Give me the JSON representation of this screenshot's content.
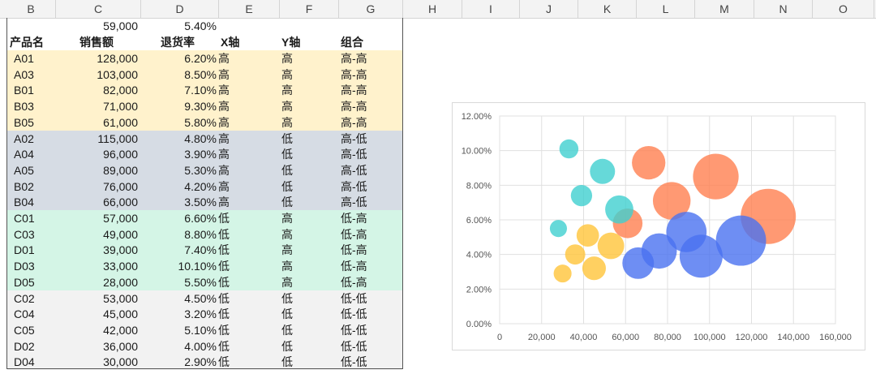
{
  "columns": [
    "B",
    "C",
    "D",
    "E",
    "F",
    "G",
    "H",
    "I",
    "J",
    "K",
    "L",
    "M",
    "N",
    "O"
  ],
  "summary": {
    "avg_sales": "59,000",
    "avg_return": "5.40%"
  },
  "header": {
    "product": "产品名",
    "sales": "销售额",
    "return_rate": "退货率",
    "x_axis": "X轴",
    "y_axis": "Y轴",
    "combo": "组合"
  },
  "rows": [
    {
      "name": "A01",
      "sales": "128,000",
      "rate": "6.20%",
      "x": "高",
      "y": "高",
      "combo": "高-高",
      "group": "hh"
    },
    {
      "name": "A03",
      "sales": "103,000",
      "rate": "8.50%",
      "x": "高",
      "y": "高",
      "combo": "高-高",
      "group": "hh"
    },
    {
      "name": "B01",
      "sales": "82,000",
      "rate": "7.10%",
      "x": "高",
      "y": "高",
      "combo": "高-高",
      "group": "hh"
    },
    {
      "name": "B03",
      "sales": "71,000",
      "rate": "9.30%",
      "x": "高",
      "y": "高",
      "combo": "高-高",
      "group": "hh"
    },
    {
      "name": "B05",
      "sales": "61,000",
      "rate": "5.80%",
      "x": "高",
      "y": "高",
      "combo": "高-高",
      "group": "hh"
    },
    {
      "name": "A02",
      "sales": "115,000",
      "rate": "4.80%",
      "x": "高",
      "y": "低",
      "combo": "高-低",
      "group": "hl"
    },
    {
      "name": "A04",
      "sales": "96,000",
      "rate": "3.90%",
      "x": "高",
      "y": "低",
      "combo": "高-低",
      "group": "hl"
    },
    {
      "name": "A05",
      "sales": "89,000",
      "rate": "5.30%",
      "x": "高",
      "y": "低",
      "combo": "高-低",
      "group": "hl"
    },
    {
      "name": "B02",
      "sales": "76,000",
      "rate": "4.20%",
      "x": "高",
      "y": "低",
      "combo": "高-低",
      "group": "hl"
    },
    {
      "name": "B04",
      "sales": "66,000",
      "rate": "3.50%",
      "x": "高",
      "y": "低",
      "combo": "高-低",
      "group": "hl"
    },
    {
      "name": "C01",
      "sales": "57,000",
      "rate": "6.60%",
      "x": "低",
      "y": "高",
      "combo": "低-高",
      "group": "lh"
    },
    {
      "name": "C03",
      "sales": "49,000",
      "rate": "8.80%",
      "x": "低",
      "y": "高",
      "combo": "低-高",
      "group": "lh"
    },
    {
      "name": "D01",
      "sales": "39,000",
      "rate": "7.40%",
      "x": "低",
      "y": "高",
      "combo": "低-高",
      "group": "lh"
    },
    {
      "name": "D03",
      "sales": "33,000",
      "rate": "10.10%",
      "x": "低",
      "y": "高",
      "combo": "低-高",
      "group": "lh"
    },
    {
      "name": "D05",
      "sales": "28,000",
      "rate": "5.50%",
      "x": "低",
      "y": "高",
      "combo": "低-高",
      "group": "lh"
    },
    {
      "name": "C02",
      "sales": "53,000",
      "rate": "4.50%",
      "x": "低",
      "y": "低",
      "combo": "低-低",
      "group": "ll"
    },
    {
      "name": "C04",
      "sales": "45,000",
      "rate": "3.20%",
      "x": "低",
      "y": "低",
      "combo": "低-低",
      "group": "ll"
    },
    {
      "name": "C05",
      "sales": "42,000",
      "rate": "5.10%",
      "x": "低",
      "y": "低",
      "combo": "低-低",
      "group": "ll"
    },
    {
      "name": "D02",
      "sales": "36,000",
      "rate": "4.00%",
      "x": "低",
      "y": "低",
      "combo": "低-低",
      "group": "ll"
    },
    {
      "name": "D04",
      "sales": "30,000",
      "rate": "2.90%",
      "x": "低",
      "y": "低",
      "combo": "低-低",
      "group": "ll"
    }
  ],
  "group_colors": {
    "hh": "#fff2cc",
    "hl": "#d6dce4",
    "lh": "#d4f5e6",
    "ll": "#f2f2f2"
  },
  "chart_data": {
    "type": "scatter",
    "subtype": "bubble",
    "xlim": [
      0,
      160000
    ],
    "ylim": [
      0,
      0.12
    ],
    "x_ticks": [
      "0",
      "20,000",
      "40,000",
      "60,000",
      "80,000",
      "100,000",
      "120,000",
      "140,000",
      "160,000"
    ],
    "y_ticks": [
      "0.00%",
      "2.00%",
      "4.00%",
      "6.00%",
      "8.00%",
      "10.00%",
      "12.00%"
    ],
    "grid": true,
    "series": [
      {
        "color": "#ff7f50",
        "points": [
          [
            128000,
            0.062
          ],
          [
            103000,
            0.085
          ],
          [
            82000,
            0.071
          ],
          [
            71000,
            0.093
          ],
          [
            61000,
            0.058
          ]
        ]
      },
      {
        "color": "#4a72f0",
        "points": [
          [
            115000,
            0.048
          ],
          [
            96000,
            0.039
          ],
          [
            89000,
            0.053
          ],
          [
            76000,
            0.042
          ],
          [
            66000,
            0.035
          ]
        ]
      },
      {
        "color": "#40cfcf",
        "points": [
          [
            57000,
            0.066
          ],
          [
            49000,
            0.088
          ],
          [
            39000,
            0.074
          ],
          [
            33000,
            0.101
          ],
          [
            28000,
            0.055
          ]
        ]
      },
      {
        "color": "#ffc43a",
        "points": [
          [
            53000,
            0.045
          ],
          [
            45000,
            0.032
          ],
          [
            42000,
            0.051
          ],
          [
            36000,
            0.04
          ],
          [
            30000,
            0.029
          ]
        ]
      }
    ]
  }
}
